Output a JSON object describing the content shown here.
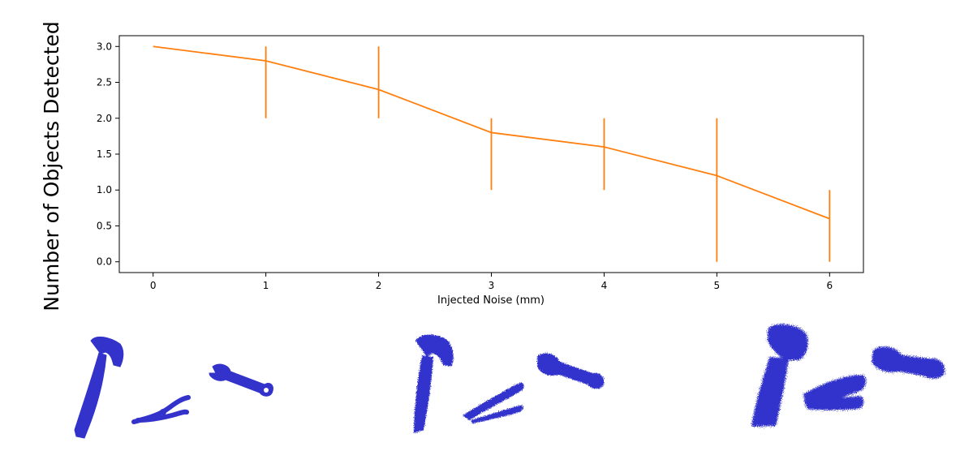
{
  "chart_data": {
    "type": "line",
    "x": [
      0,
      1,
      2,
      3,
      4,
      5,
      6
    ],
    "series": [
      {
        "values": [
          3.0,
          2.8,
          2.4,
          1.8,
          1.6,
          1.2,
          0.6
        ],
        "err_low": [
          3.0,
          2.0,
          2.0,
          1.0,
          1.0,
          0.0,
          0.0
        ],
        "err_high": [
          3.0,
          3.0,
          3.0,
          2.0,
          2.0,
          2.0,
          1.0
        ],
        "color": "#ff7f0e"
      }
    ],
    "xlabel": "Injected Noise (mm)",
    "ylabel": "Number of Objects Detected",
    "xlim": [
      -0.3,
      6.3
    ],
    "ylim": [
      -0.15,
      3.15
    ],
    "xticks": [
      "0",
      "1",
      "2",
      "3",
      "4",
      "5",
      "6"
    ],
    "yticks": [
      "0.0",
      "0.5",
      "1.0",
      "1.5",
      "2.0",
      "2.5",
      "3.0"
    ],
    "grid": false
  },
  "tool_panels": [
    {
      "noise": "none",
      "tools": [
        "hammer-icon",
        "pliers-icon",
        "wrench-icon"
      ]
    },
    {
      "noise": "medium",
      "tools": [
        "hammer-icon",
        "pliers-icon",
        "wrench-icon"
      ]
    },
    {
      "noise": "high",
      "tools": [
        "hammer-icon",
        "pliers-icon",
        "wrench-icon"
      ]
    }
  ],
  "colors": {
    "point_cloud": "#3333cc",
    "line": "#ff7f0e"
  }
}
